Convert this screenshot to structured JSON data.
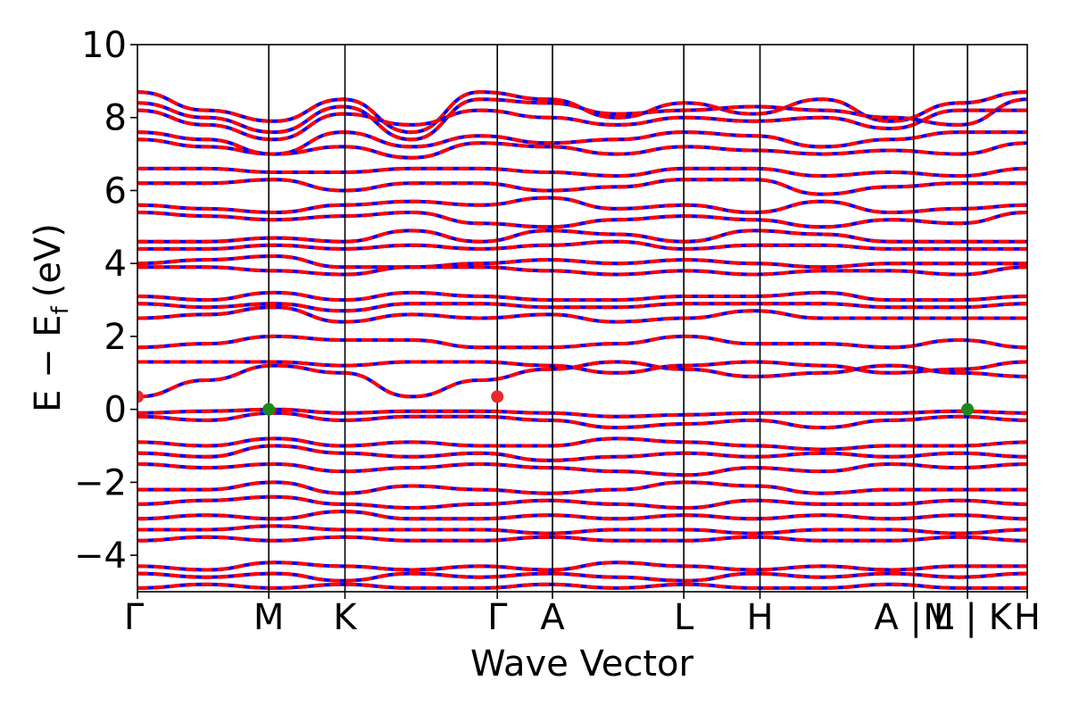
{
  "chart_data": {
    "type": "line",
    "title": "",
    "xlabel": "Wave Vector",
    "ylabel": {
      "main": "E − E",
      "sub": "f",
      "unit": "(eV)"
    },
    "ylim": [
      -5,
      10
    ],
    "yticks": [
      {
        "value": 10,
        "label": "10"
      },
      {
        "value": 8,
        "label": "8"
      },
      {
        "value": 6,
        "label": "6"
      },
      {
        "value": 4,
        "label": "4"
      },
      {
        "value": 2,
        "label": "2"
      },
      {
        "value": 0,
        "label": "0"
      },
      {
        "value": -2,
        "label": "−2"
      },
      {
        "value": -4,
        "label": "−4"
      }
    ],
    "xlim": [
      0,
      6.775
    ],
    "kpoints": [
      {
        "x": 0.0,
        "label": "Γ"
      },
      {
        "x": 1.0,
        "label": "M"
      },
      {
        "x": 1.58,
        "label": "K"
      },
      {
        "x": 2.74,
        "label": "Γ"
      },
      {
        "x": 3.16,
        "label": "A"
      },
      {
        "x": 4.16,
        "label": "L"
      },
      {
        "x": 4.74,
        "label": "H"
      },
      {
        "x": 5.91,
        "label": "A | L"
      },
      {
        "x": 6.32,
        "label": "M | K"
      },
      {
        "x": 6.775,
        "label": "H"
      }
    ],
    "band_extrema": [
      {
        "x": 0.0,
        "y": 0.35,
        "color": "#e8292b"
      },
      {
        "x": 2.74,
        "y": 0.35,
        "color": "#e8292b"
      },
      {
        "x": 1.0,
        "y": 0.0,
        "color": "#1b8a1b"
      },
      {
        "x": 6.32,
        "y": 0.0,
        "color": "#1b8a1b"
      }
    ],
    "series": [
      {
        "color": "#0000ff",
        "style": "solid"
      },
      {
        "color": "#ff0000",
        "style": "dashed"
      }
    ],
    "bands": [
      [
        8.7,
        8.2,
        7.9,
        8.5,
        7.6,
        8.7,
        8.5,
        8.0,
        8.4,
        8.1,
        8.5,
        7.9,
        8.4,
        8.7
      ],
      [
        8.4,
        8.0,
        7.6,
        8.3,
        7.4,
        8.5,
        8.4,
        8.1,
        8.2,
        8.3,
        8.2,
        8.0,
        7.8,
        8.5
      ],
      [
        8.2,
        7.8,
        7.4,
        8.1,
        7.8,
        8.2,
        8.0,
        7.8,
        8.0,
        7.9,
        8.0,
        7.7,
        8.2,
        8.2
      ],
      [
        7.6,
        7.4,
        7.0,
        7.6,
        7.2,
        7.5,
        7.3,
        7.4,
        7.6,
        7.5,
        7.2,
        7.4,
        7.6,
        7.6
      ],
      [
        7.4,
        7.2,
        7.0,
        7.2,
        6.9,
        7.3,
        7.2,
        7.0,
        7.2,
        7.1,
        7.0,
        7.1,
        7.0,
        7.3
      ],
      [
        6.6,
        6.6,
        6.5,
        6.5,
        6.6,
        6.6,
        6.5,
        6.4,
        6.6,
        6.6,
        6.4,
        6.5,
        6.4,
        6.6
      ],
      [
        6.2,
        6.2,
        6.3,
        6.0,
        6.2,
        6.2,
        6.0,
        6.1,
        6.3,
        6.3,
        5.9,
        6.1,
        6.2,
        6.2
      ],
      [
        5.6,
        5.5,
        5.4,
        5.6,
        5.7,
        5.6,
        5.8,
        5.5,
        5.6,
        5.4,
        5.7,
        5.4,
        5.5,
        5.6
      ],
      [
        5.4,
        5.3,
        5.2,
        5.3,
        5.4,
        5.1,
        5.0,
        5.2,
        5.3,
        5.2,
        5.0,
        5.2,
        5.1,
        5.4
      ],
      [
        4.6,
        4.6,
        4.7,
        4.6,
        4.9,
        4.6,
        4.9,
        4.8,
        4.6,
        4.9,
        4.8,
        4.6,
        4.6,
        4.6
      ],
      [
        4.4,
        4.4,
        4.5,
        4.4,
        4.5,
        4.4,
        4.5,
        4.6,
        4.4,
        4.5,
        4.5,
        4.4,
        4.4,
        4.4
      ],
      [
        4.0,
        4.1,
        4.2,
        3.9,
        3.9,
        4.0,
        4.1,
        4.0,
        4.1,
        4.0,
        3.9,
        4.0,
        4.0,
        4.0
      ],
      [
        3.9,
        3.9,
        3.8,
        3.7,
        3.9,
        3.9,
        3.8,
        3.7,
        3.8,
        3.7,
        3.8,
        3.8,
        3.7,
        3.9
      ],
      [
        3.1,
        3.0,
        3.2,
        3.0,
        3.2,
        3.1,
        3.0,
        3.0,
        3.1,
        3.1,
        3.2,
        3.0,
        3.0,
        3.1
      ],
      [
        2.9,
        2.8,
        2.9,
        2.7,
        2.9,
        2.9,
        2.8,
        2.8,
        2.9,
        2.9,
        2.9,
        2.8,
        2.8,
        2.9
      ],
      [
        2.5,
        2.6,
        2.8,
        2.4,
        2.6,
        2.5,
        2.6,
        2.4,
        2.5,
        2.7,
        2.5,
        2.5,
        2.5,
        2.5
      ],
      [
        1.7,
        1.8,
        2.0,
        1.9,
        1.9,
        1.7,
        1.7,
        1.8,
        2.0,
        1.8,
        1.8,
        1.7,
        1.9,
        1.7
      ],
      [
        1.3,
        1.3,
        1.3,
        1.2,
        1.3,
        1.3,
        1.2,
        1.0,
        1.2,
        1.3,
        1.2,
        1.0,
        1.1,
        1.3
      ],
      [
        0.35,
        0.8,
        1.2,
        1.0,
        0.35,
        0.8,
        1.1,
        1.3,
        1.1,
        0.9,
        1.0,
        1.2,
        1.0,
        0.9
      ],
      [
        -0.1,
        -0.05,
        0.0,
        -0.1,
        -0.05,
        -0.05,
        -0.1,
        -0.2,
        -0.15,
        -0.1,
        -0.1,
        -0.1,
        -0.05,
        -0.1
      ],
      [
        -0.2,
        -0.3,
        -0.1,
        -0.3,
        -0.2,
        -0.2,
        -0.3,
        -0.5,
        -0.4,
        -0.3,
        -0.5,
        -0.3,
        -0.2,
        -0.3
      ],
      [
        -0.9,
        -1.0,
        -0.8,
        -1.0,
        -0.9,
        -1.0,
        -1.0,
        -0.8,
        -0.9,
        -1.0,
        -1.1,
        -1.0,
        -1.0,
        -0.9
      ],
      [
        -1.2,
        -1.3,
        -1.0,
        -1.2,
        -1.3,
        -1.2,
        -1.4,
        -1.3,
        -1.2,
        -1.3,
        -1.2,
        -1.3,
        -1.2,
        -1.3
      ],
      [
        -1.5,
        -1.6,
        -1.5,
        -1.7,
        -1.6,
        -1.5,
        -1.6,
        -1.7,
        -1.8,
        -1.6,
        -1.7,
        -1.5,
        -1.6,
        -1.5
      ],
      [
        -2.2,
        -2.2,
        -2.0,
        -2.3,
        -2.1,
        -2.2,
        -2.3,
        -2.2,
        -2.0,
        -2.1,
        -2.3,
        -2.2,
        -2.2,
        -2.2
      ],
      [
        -2.6,
        -2.5,
        -2.4,
        -2.6,
        -2.7,
        -2.6,
        -2.5,
        -2.6,
        -2.7,
        -2.5,
        -2.6,
        -2.6,
        -2.5,
        -2.6
      ],
      [
        -3.0,
        -2.9,
        -3.0,
        -2.8,
        -3.0,
        -3.0,
        -2.9,
        -3.0,
        -2.9,
        -3.0,
        -2.9,
        -3.0,
        -2.9,
        -3.0
      ],
      [
        -3.3,
        -3.3,
        -3.2,
        -3.3,
        -3.3,
        -3.3,
        -3.4,
        -3.3,
        -3.3,
        -3.4,
        -3.3,
        -3.3,
        -3.4,
        -3.3
      ],
      [
        -3.6,
        -3.5,
        -3.6,
        -3.5,
        -3.6,
        -3.6,
        -3.5,
        -3.6,
        -3.6,
        -3.5,
        -3.6,
        -3.6,
        -3.5,
        -3.6
      ],
      [
        -4.3,
        -4.4,
        -4.2,
        -4.3,
        -4.4,
        -4.3,
        -4.4,
        -4.2,
        -4.3,
        -4.4,
        -4.3,
        -4.4,
        -4.3,
        -4.3
      ],
      [
        -4.5,
        -4.6,
        -4.5,
        -4.7,
        -4.5,
        -4.6,
        -4.5,
        -4.6,
        -4.7,
        -4.5,
        -4.6,
        -4.5,
        -4.6,
        -4.5
      ],
      [
        -4.9,
        -4.8,
        -4.9,
        -4.8,
        -4.9,
        -4.9,
        -4.8,
        -4.9,
        -4.8,
        -4.9,
        -4.9,
        -4.8,
        -4.9,
        -4.9
      ]
    ]
  }
}
